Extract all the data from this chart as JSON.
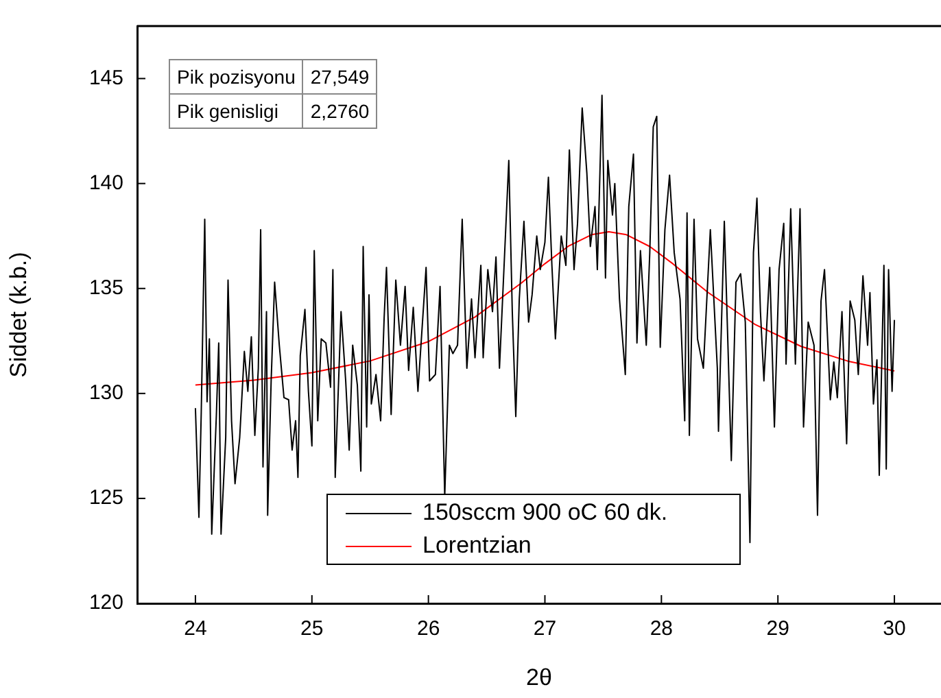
{
  "chart_data": {
    "type": "line",
    "xlabel": "2θ",
    "ylabel": "Siddet (k.b.)",
    "xlim": [
      23.5,
      30.4
    ],
    "xticks": [
      24,
      25,
      26,
      27,
      28,
      29,
      30
    ],
    "ylim": [
      120,
      147.5
    ],
    "yticks": [
      120,
      125,
      130,
      135,
      140,
      145
    ],
    "grid": false,
    "legend": "bottom",
    "marker": "none",
    "line_style": "solid",
    "annotations": [
      "Pik pozisyonu",
      "27,549",
      "Pik genisligi",
      "2,2760"
    ],
    "series": [
      {
        "name": "150sccm 900 oC 60 dk.",
        "color": "#000000",
        "x": [
          24.0,
          24.03,
          24.05,
          24.08,
          24.1,
          24.12,
          24.14,
          24.18,
          24.2,
          24.22,
          24.26,
          24.28,
          24.31,
          24.34,
          24.38,
          24.42,
          24.45,
          24.48,
          24.51,
          24.54,
          24.56,
          24.58,
          24.61,
          24.62,
          24.65,
          24.68,
          24.72,
          24.76,
          24.8,
          24.83,
          24.86,
          24.88,
          24.9,
          24.94,
          24.97,
          25.0,
          25.02,
          25.05,
          25.08,
          25.12,
          25.16,
          25.18,
          25.2,
          25.25,
          25.29,
          25.32,
          25.35,
          25.39,
          25.42,
          25.44,
          25.47,
          25.49,
          25.51,
          25.55,
          25.59,
          25.62,
          25.64,
          25.68,
          25.72,
          25.76,
          25.8,
          25.83,
          25.87,
          25.91,
          25.98,
          26.01,
          26.06,
          26.1,
          26.14,
          26.18,
          26.21,
          26.25,
          26.29,
          26.33,
          26.37,
          26.4,
          26.45,
          26.47,
          26.51,
          26.55,
          26.58,
          26.61,
          26.64,
          26.69,
          26.72,
          26.75,
          26.78,
          26.82,
          26.86,
          26.89,
          26.93,
          26.96,
          27.0,
          27.03,
          27.06,
          27.09,
          27.14,
          27.18,
          27.21,
          27.25,
          27.28,
          27.32,
          27.36,
          27.39,
          27.43,
          27.45,
          27.49,
          27.52,
          27.54,
          27.58,
          27.6,
          27.64,
          27.69,
          27.72,
          27.76,
          27.79,
          27.82,
          27.87,
          27.9,
          27.93,
          27.96,
          27.99,
          28.03,
          28.07,
          28.11,
          28.16,
          28.2,
          28.22,
          28.24,
          28.28,
          28.31,
          28.36,
          28.42,
          28.48,
          28.49,
          28.54,
          28.6,
          28.64,
          28.68,
          28.72,
          28.76,
          28.79,
          28.82,
          28.85,
          28.88,
          28.93,
          28.97,
          29.01,
          29.05,
          29.07,
          29.11,
          29.15,
          29.19,
          29.22,
          29.26,
          29.31,
          29.34,
          29.37,
          29.4,
          29.45,
          29.48,
          29.51,
          29.55,
          29.59,
          29.62,
          29.66,
          29.69,
          29.73,
          29.77,
          29.79,
          29.82,
          29.85,
          29.87,
          29.91,
          29.93,
          29.95,
          29.98,
          30.0
        ],
        "values": [
          129.3,
          124.1,
          129.1,
          138.3,
          129.6,
          132.6,
          123.3,
          129.0,
          132.4,
          123.3,
          127.9,
          135.4,
          128.7,
          125.7,
          127.9,
          132.0,
          130.1,
          132.7,
          128.0,
          131.2,
          137.8,
          126.5,
          133.9,
          124.2,
          130.6,
          135.3,
          132.3,
          129.8,
          129.7,
          127.3,
          128.7,
          126.0,
          131.8,
          134.0,
          130.1,
          127.5,
          136.8,
          128.7,
          132.6,
          132.4,
          130.3,
          135.9,
          126.0,
          133.9,
          130.6,
          127.3,
          132.3,
          130.4,
          126.3,
          137.0,
          128.4,
          134.7,
          129.5,
          130.9,
          128.7,
          133.6,
          136.0,
          129.0,
          135.4,
          132.3,
          135.1,
          131.1,
          134.1,
          130.1,
          136.0,
          130.6,
          130.9,
          135.1,
          125.1,
          132.3,
          131.9,
          132.3,
          138.3,
          131.2,
          134.5,
          131.7,
          136.1,
          131.7,
          135.9,
          133.9,
          136.5,
          131.2,
          134.9,
          141.1,
          133.9,
          128.9,
          134.5,
          138.2,
          133.4,
          134.7,
          137.5,
          135.9,
          137.2,
          140.3,
          136.1,
          132.6,
          137.5,
          136.1,
          141.6,
          135.9,
          138.1,
          143.6,
          140.5,
          137.0,
          138.9,
          135.9,
          144.2,
          135.5,
          141.1,
          138.5,
          140.0,
          134.5,
          130.9,
          138.9,
          141.4,
          132.4,
          136.8,
          132.3,
          136.7,
          142.7,
          143.2,
          132.2,
          137.8,
          140.4,
          136.7,
          134.5,
          128.7,
          138.6,
          128.0,
          138.3,
          132.6,
          131.2,
          137.8,
          131.2,
          128.2,
          138.2,
          126.8,
          135.3,
          135.7,
          133.4,
          122.9,
          136.7,
          139.3,
          133.9,
          130.6,
          136.0,
          128.4,
          135.9,
          138.1,
          131.4,
          138.8,
          131.4,
          138.8,
          128.4,
          133.4,
          132.3,
          124.2,
          134.4,
          135.9,
          129.7,
          131.5,
          129.8,
          133.9,
          127.6,
          134.4,
          133.5,
          130.9,
          135.6,
          132.3,
          134.8,
          129.5,
          131.6,
          126.1,
          136.1,
          126.4,
          135.9,
          130.1,
          133.5
        ]
      },
      {
        "name": "Lorentzian",
        "color": "#ff0000",
        "x": [
          24,
          24.5,
          25,
          25.5,
          26,
          26.4,
          26.8,
          27,
          27.2,
          27.4,
          27.549,
          27.7,
          27.9,
          28.1,
          28.4,
          28.8,
          29.2,
          29.6,
          30
        ],
        "values": [
          130.4,
          130.63,
          130.99,
          131.55,
          132.47,
          133.64,
          135.27,
          136.18,
          137.01,
          137.56,
          137.7,
          137.56,
          137.0,
          136.17,
          134.81,
          133.3,
          132.24,
          131.54,
          131.07
        ]
      }
    ]
  }
}
